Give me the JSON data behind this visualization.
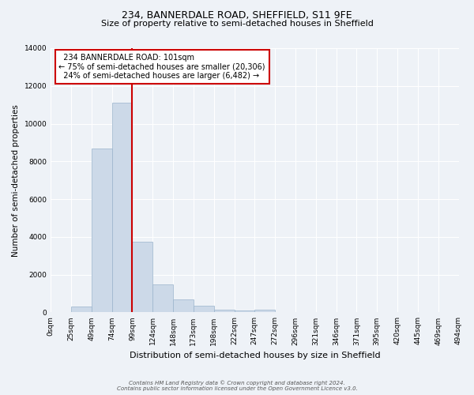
{
  "title_line1": "234, BANNERDALE ROAD, SHEFFIELD, S11 9FE",
  "title_line2": "Size of property relative to semi-detached houses in Sheffield",
  "xlabel": "Distribution of semi-detached houses by size in Sheffield",
  "ylabel": "Number of semi-detached properties",
  "footnote": "Contains HM Land Registry data © Crown copyright and database right 2024.\nContains public sector information licensed under the Open Government Licence v3.0.",
  "bin_labels": [
    "0sqm",
    "25sqm",
    "49sqm",
    "74sqm",
    "99sqm",
    "124sqm",
    "148sqm",
    "173sqm",
    "198sqm",
    "222sqm",
    "247sqm",
    "272sqm",
    "296sqm",
    "321sqm",
    "346sqm",
    "371sqm",
    "395sqm",
    "420sqm",
    "445sqm",
    "469sqm",
    "494sqm"
  ],
  "bar_heights": [
    0,
    300,
    8700,
    11100,
    3750,
    1500,
    700,
    350,
    150,
    100,
    150,
    0,
    0,
    0,
    0,
    0,
    0,
    0,
    0,
    0
  ],
  "bar_color": "#ccd9e8",
  "bar_edge_color": "#9ab4cc",
  "property_label": "234 BANNERDALE ROAD: 101sqm",
  "smaller_pct": 75,
  "smaller_count": "20,306",
  "larger_pct": 24,
  "larger_count": "6,482",
  "vline_color": "#cc0000",
  "ylim": [
    0,
    14000
  ],
  "yticks": [
    0,
    2000,
    4000,
    6000,
    8000,
    10000,
    12000,
    14000
  ],
  "vline_x": 4.0,
  "background_color": "#eef2f7",
  "plot_background": "#eef2f7",
  "grid_color": "#ffffff",
  "title1_fontsize": 9,
  "title2_fontsize": 8,
  "ylabel_fontsize": 7.5,
  "xlabel_fontsize": 8,
  "tick_fontsize": 6.5,
  "footnote_fontsize": 5,
  "annot_fontsize": 7
}
